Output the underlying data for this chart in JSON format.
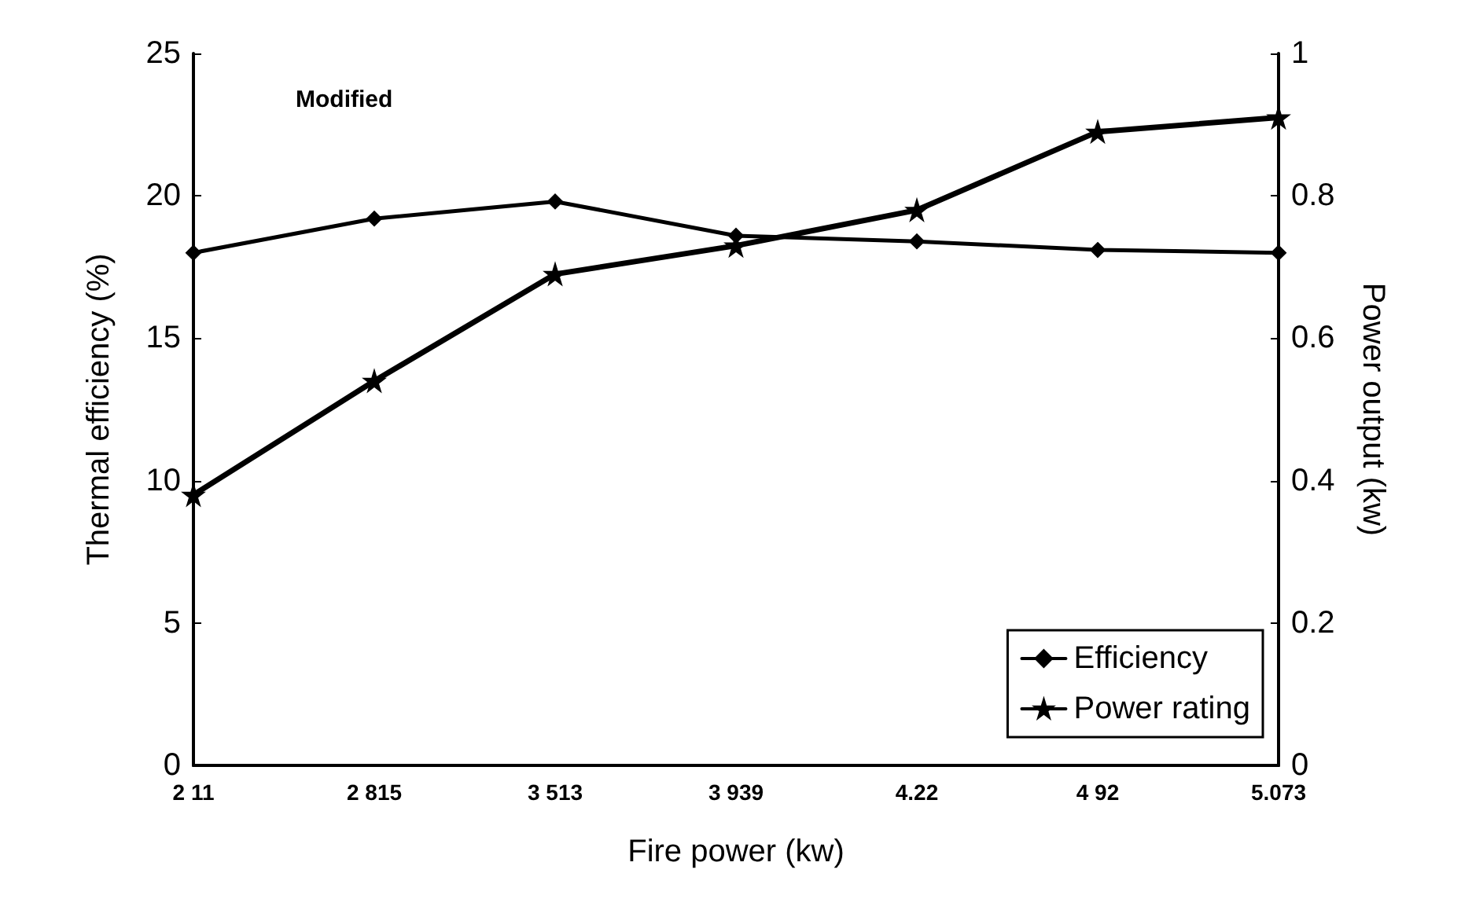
{
  "chart_data": {
    "type": "line",
    "xlabel": "Fire power (kw)",
    "ylabel": "Thermal efficiency (%)",
    "y2label": "Power output (kw)",
    "annotations": [
      "Modified"
    ],
    "categories": [
      "2 11",
      "2 815",
      "3 513",
      "3 939",
      "4.22",
      "4 92",
      "5.073"
    ],
    "series": [
      {
        "name": "Efficiency",
        "color": "#000000",
        "marker": "diamond",
        "values": [
          18.0,
          19.2,
          19.8,
          18.6,
          18.4,
          18.1,
          18.0
        ]
      },
      {
        "name": "Power rating",
        "color": "#000000",
        "marker": "star",
        "axis": "y2",
        "values": [
          0.38,
          0.54,
          0.69,
          0.73,
          0.78,
          0.89,
          0.91
        ]
      }
    ],
    "ylim": [
      0,
      25
    ],
    "yticks": [
      0,
      5,
      10,
      15,
      20,
      25
    ],
    "y2lim": [
      0,
      1
    ],
    "y2ticks": [
      0,
      0.2,
      0.4,
      0.6,
      0.8,
      1
    ],
    "grid": false,
    "legend": "bottom right",
    "line_style": "solid"
  }
}
